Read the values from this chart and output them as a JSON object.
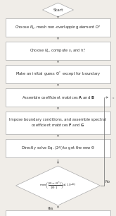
{
  "bg_color": "#f0ede8",
  "box_color": "#ffffff",
  "box_edge": "#aaaaaa",
  "arrow_color": "#666666",
  "text_color": "#333333",
  "no_label": "No",
  "yes_label": "Yes",
  "fs": 3.8
}
